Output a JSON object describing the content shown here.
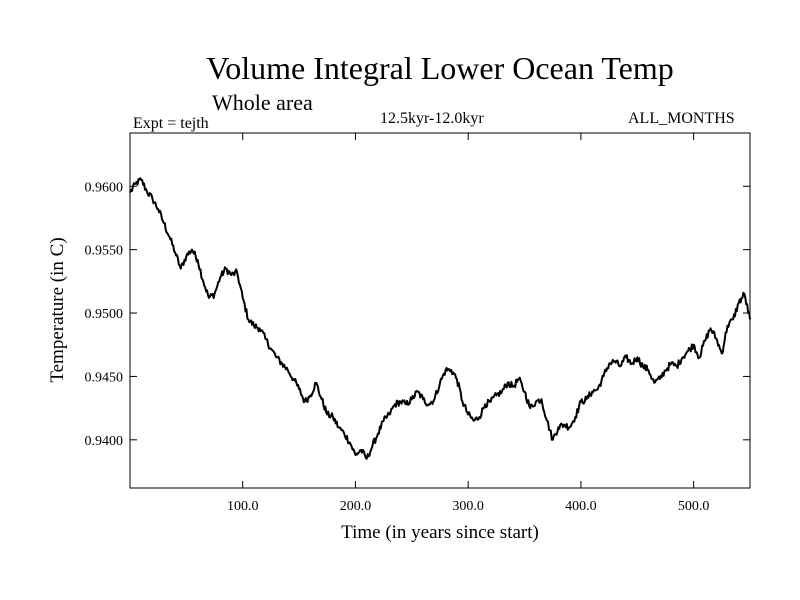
{
  "chart_data": {
    "type": "line",
    "title": "Volume Integral Lower Ocean Temp",
    "subtitle": "Whole area",
    "experiment_label": "Expt = tejth",
    "period_label": "12.5kyr-12.0kyr",
    "months_label": "ALL_MONTHS",
    "xlabel": "Time (in years since start)",
    "ylabel": "Temperature (in C)",
    "xlim": [
      0,
      550
    ],
    "ylim": [
      0.9362,
      0.9642
    ],
    "x_ticks": [
      100,
      200,
      300,
      400,
      500
    ],
    "x_tick_labels": [
      "100.0",
      "200.0",
      "300.0",
      "400.0",
      "500.0"
    ],
    "y_ticks": [
      0.94,
      0.945,
      0.95,
      0.955,
      0.96
    ],
    "y_tick_labels": [
      "0.9400",
      "0.9450",
      "0.9500",
      "0.9550",
      "0.9600"
    ],
    "grid": false,
    "series": [
      {
        "name": "Volume Integral Lower Ocean Temp",
        "x": [
          0,
          5,
          10,
          15,
          20,
          25,
          30,
          35,
          40,
          45,
          50,
          55,
          60,
          65,
          70,
          75,
          80,
          85,
          90,
          95,
          100,
          105,
          110,
          115,
          120,
          125,
          130,
          135,
          140,
          145,
          150,
          155,
          160,
          165,
          170,
          175,
          180,
          185,
          190,
          195,
          200,
          205,
          210,
          215,
          220,
          225,
          230,
          235,
          240,
          245,
          250,
          255,
          260,
          265,
          270,
          275,
          280,
          285,
          290,
          295,
          300,
          305,
          310,
          315,
          320,
          325,
          330,
          335,
          340,
          345,
          350,
          355,
          360,
          365,
          370,
          375,
          380,
          385,
          390,
          395,
          400,
          405,
          410,
          415,
          420,
          425,
          430,
          435,
          440,
          445,
          450,
          455,
          460,
          465,
          470,
          475,
          480,
          485,
          490,
          495,
          500,
          505,
          510,
          515,
          520,
          525,
          530,
          535,
          540,
          545,
          550
        ],
        "values": [
          0.9595,
          0.9602,
          0.9605,
          0.9596,
          0.959,
          0.9582,
          0.9571,
          0.956,
          0.9548,
          0.9535,
          0.9545,
          0.955,
          0.9542,
          0.9525,
          0.9512,
          0.9515,
          0.9528,
          0.9535,
          0.953,
          0.9532,
          0.9512,
          0.9495,
          0.949,
          0.9488,
          0.948,
          0.9472,
          0.9465,
          0.946,
          0.9455,
          0.9448,
          0.944,
          0.943,
          0.9435,
          0.9445,
          0.9432,
          0.942,
          0.9418,
          0.941,
          0.9405,
          0.9398,
          0.9388,
          0.9392,
          0.9385,
          0.9395,
          0.9405,
          0.9415,
          0.942,
          0.9428,
          0.943,
          0.9428,
          0.9432,
          0.9438,
          0.9432,
          0.9428,
          0.9432,
          0.9445,
          0.9455,
          0.9455,
          0.9448,
          0.943,
          0.942,
          0.9415,
          0.9418,
          0.9428,
          0.943,
          0.9435,
          0.9438,
          0.9445,
          0.9442,
          0.9448,
          0.9438,
          0.9425,
          0.943,
          0.9432,
          0.9415,
          0.94,
          0.941,
          0.9412,
          0.941,
          0.9418,
          0.943,
          0.9432,
          0.9438,
          0.944,
          0.945,
          0.946,
          0.9462,
          0.9458,
          0.9465,
          0.946,
          0.9465,
          0.9458,
          0.9455,
          0.9445,
          0.9448,
          0.9455,
          0.946,
          0.9458,
          0.9465,
          0.947,
          0.9475,
          0.9465,
          0.9478,
          0.9488,
          0.948,
          0.9468,
          0.949,
          0.9495,
          0.9508,
          0.9515,
          0.9495
        ]
      }
    ]
  }
}
